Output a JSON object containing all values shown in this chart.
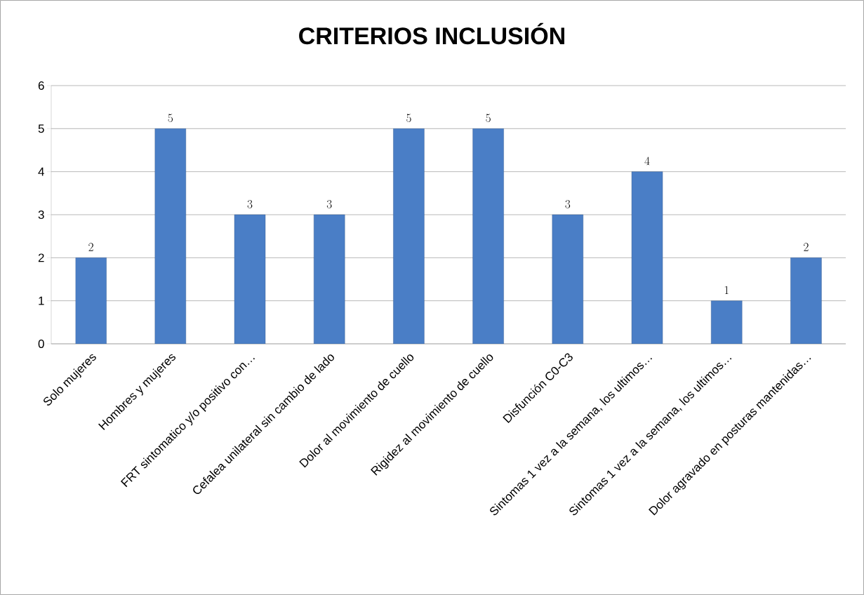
{
  "chart_data": {
    "type": "bar",
    "title": "CRITERIOS INCLUSIÓN",
    "categories": [
      "Solo mujeres",
      "Hombres y mujeres",
      "FRT sintomatico y/o positivo con…",
      "Cefalea unilateral sin cambio de lado",
      "Dolor al movimiento de cuello",
      "Rigidez al movimiento de cuello",
      "Disfunción C0-C3",
      "Sintomas 1 vez a la semana, los ultimos…",
      "Sintomas 1 vez a la semana, los ultimos…",
      "Dolor agravado en posturas mantenidas…"
    ],
    "values": [
      2,
      5,
      3,
      3,
      5,
      5,
      3,
      4,
      1,
      2
    ],
    "color": "#4a7ec6",
    "ylim": [
      0,
      6
    ],
    "yticks": [
      0,
      1,
      2,
      3,
      4,
      5,
      6
    ],
    "grid": "y",
    "data_labels": true
  }
}
